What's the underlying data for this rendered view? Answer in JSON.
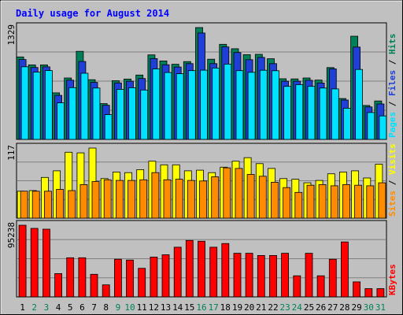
{
  "chart_data": {
    "type": "bar",
    "title": "Daily usage for August 2014",
    "categories": [
      "1",
      "2",
      "3",
      "4",
      "5",
      "6",
      "7",
      "8",
      "9",
      "10",
      "11",
      "12",
      "13",
      "14",
      "15",
      "16",
      "17",
      "18",
      "19",
      "20",
      "21",
      "22",
      "23",
      "24",
      "25",
      "26",
      "27",
      "28",
      "29",
      "30",
      "31"
    ],
    "weekend_days": [
      "2",
      "3",
      "9",
      "10",
      "16",
      "17",
      "23",
      "24",
      "30",
      "31"
    ],
    "panels": [
      {
        "name": "hits-files-pages",
        "ymax_label": "1329",
        "legend": [
          "Pages",
          "Files",
          "Hits"
        ],
        "series": [
          {
            "name": "Hits",
            "color": "#00805a",
            "values": [
              955,
              863,
              863,
              539,
              711,
              1020,
              691,
              414,
              679,
              699,
              745,
              979,
              908,
              870,
              901,
              1295,
              928,
              1101,
              1050,
              981,
              985,
              934,
              702,
              700,
              711,
              687,
              832,
              473,
              1195,
              393,
              445
            ]
          },
          {
            "name": "Files",
            "color": "#1f3fd6",
            "values": [
              925,
              833,
              840,
              510,
              686,
              902,
              660,
              395,
              654,
              674,
              705,
              936,
              865,
              838,
              877,
              1232,
              877,
              1071,
              1006,
              923,
              949,
              877,
              674,
              674,
              685,
              653,
              817,
              456,
              1069,
              376,
              410
            ]
          },
          {
            "name": "Pages",
            "color": "#00e0ff",
            "values": [
              841,
              779,
              797,
              423,
              599,
              766,
              595,
              286,
              580,
              598,
              572,
              816,
              774,
              761,
              796,
              802,
              826,
              872,
              796,
              777,
              801,
              795,
              614,
              634,
              614,
              595,
              585,
              361,
              810,
              311,
              272
            ]
          }
        ]
      },
      {
        "name": "visits-sites",
        "ymax_label": "117",
        "legend": [
          "Sites",
          "Visits"
        ],
        "series": [
          {
            "name": "Visits",
            "color": "#ffff00",
            "values": [
              45,
              46,
              68,
              79,
              110,
              109,
              117,
              66,
              77,
              76,
              81,
              95,
              89,
              89,
              79,
              80,
              76,
              85,
              95,
              101,
              91,
              83,
              66,
              65,
              59,
              63,
              74,
              77,
              79,
              67,
              90
            ]
          },
          {
            "name": "Sites",
            "color": "#ff8c00",
            "values": [
              45,
              45,
              45,
              48,
              46,
              56,
              61,
              64,
              63,
              63,
              64,
              76,
              64,
              65,
              63,
              62,
              69,
              84,
              83,
              73,
              70,
              60,
              51,
              43,
              55,
              56,
              54,
              56,
              55,
              54,
              59
            ]
          }
        ]
      },
      {
        "name": "kbytes",
        "ymax_label": "95238",
        "legend": [
          "KBytes"
        ],
        "series": [
          {
            "name": "KBytes",
            "color": "#ff0000",
            "values": [
              95238,
              91000,
              90000,
              31000,
              52000,
              52000,
              30000,
              16000,
              50000,
              49000,
              38000,
              53000,
              56000,
              66000,
              75000,
              74000,
              66000,
              71000,
              58000,
              58000,
              55000,
              55000,
              58000,
              28000,
              58000,
              28000,
              50000,
              73000,
              20000,
              11000,
              11000
            ]
          }
        ]
      }
    ]
  }
}
